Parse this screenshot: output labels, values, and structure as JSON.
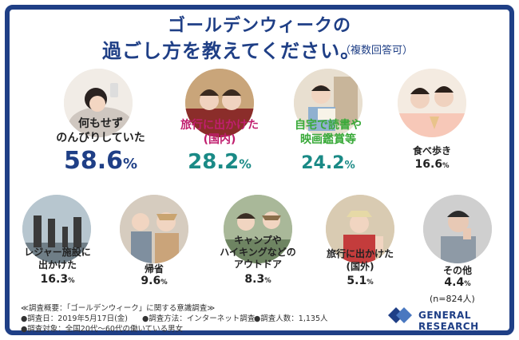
{
  "title": {
    "line1": "ゴールデンウィークの",
    "line2": "過ごし方を教えてください。",
    "note": "（複数回答可）"
  },
  "items": [
    {
      "label1": "何もせず",
      "label2": "のんびりしていた",
      "value": "58.6",
      "unit": "%",
      "pct": 58.6
    },
    {
      "label1": "旅行に出かけた",
      "label2": "(国内)",
      "value": "28.2",
      "unit": "%",
      "pct": 28.2
    },
    {
      "label1": "自宅で読書や",
      "label2": "映画鑑賞等",
      "value": "24.2",
      "unit": "%",
      "pct": 24.2
    },
    {
      "label1": "食べ歩き",
      "label2": "",
      "value": "16.6",
      "unit": "%",
      "pct": 16.6
    },
    {
      "label1": "レジャー施設に",
      "label2": "出かけた",
      "value": "16.3",
      "unit": "%",
      "pct": 16.3
    },
    {
      "label1": "帰省",
      "label2": "",
      "value": "9.6",
      "unit": "%",
      "pct": 9.6
    },
    {
      "label1": "キャンプや",
      "label2": "ハイキングなどの",
      "label3": "アウトドア",
      "value": "8.3",
      "unit": "%",
      "pct": 8.3
    },
    {
      "label1": "旅行に出かけた",
      "label2": "(国外)",
      "value": "5.1",
      "unit": "%",
      "pct": 5.1
    },
    {
      "label1": "その他",
      "label2": "",
      "value": "4.4",
      "unit": "%",
      "pct": 4.4
    }
  ],
  "sample": "(n=824人)",
  "notes": {
    "line1": "≪調査概要：「ゴールデンウィーク」に関する意識調査≫",
    "line2a": "●調査日：2019年5月17日(金)",
    "line2b": "●調査方法：インターネット調査",
    "line2c": "●調査人数：1,135人",
    "line3": "●調査対象：全国20代〜60代の働いている男女"
  },
  "logo": {
    "text": "GENERAL RESEARCH"
  },
  "colors": {
    "navy": "#1f3f86",
    "teal": "#1a8a86",
    "pink": "#c01e6e",
    "green": "#3aaa3a"
  }
}
